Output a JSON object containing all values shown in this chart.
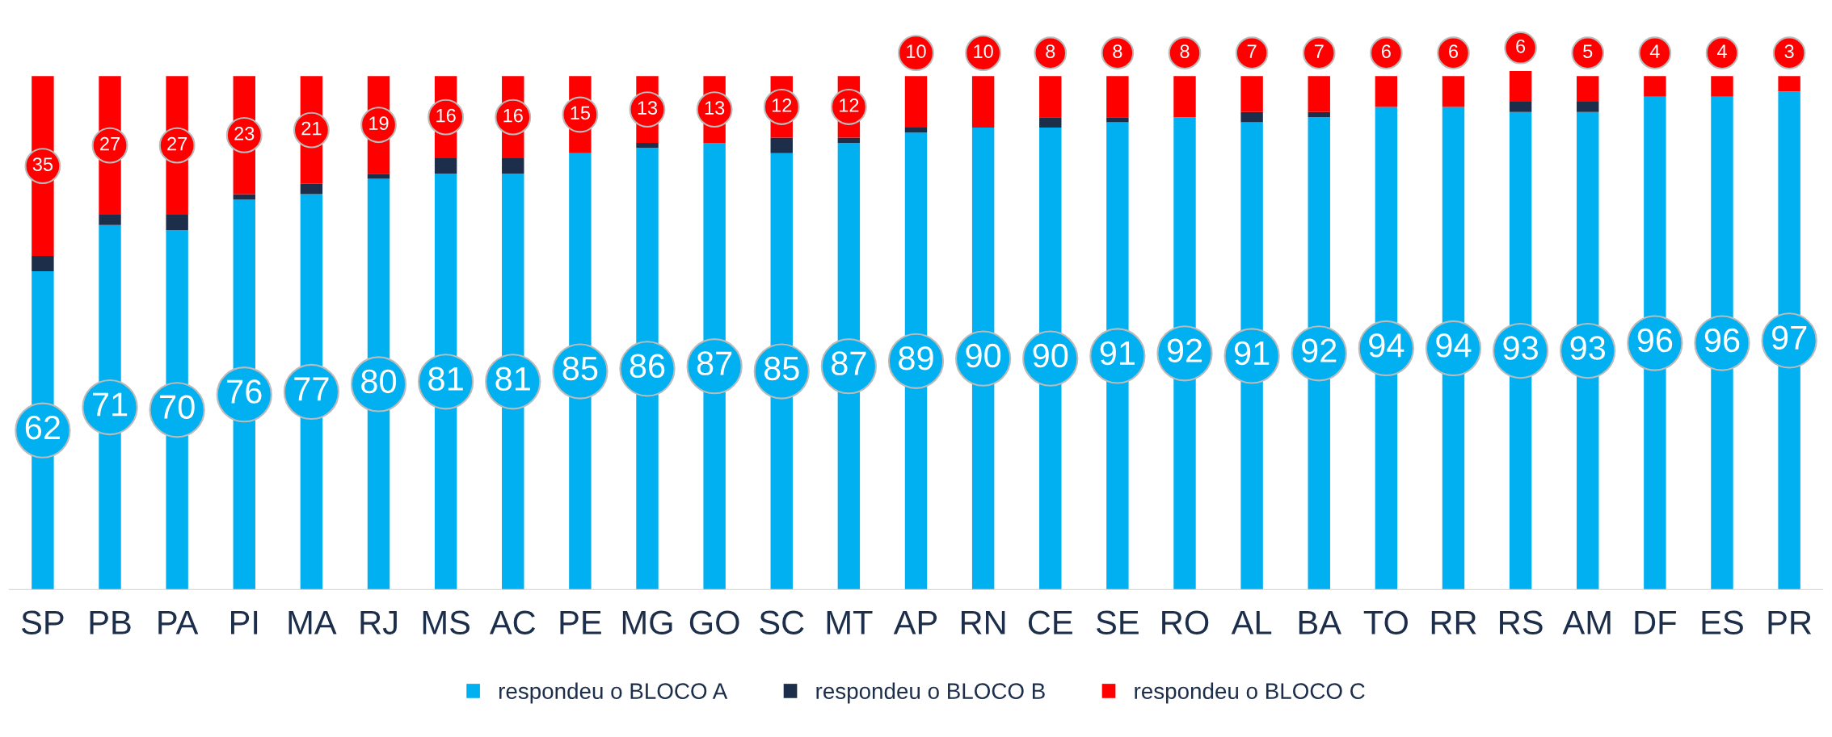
{
  "chart_data": {
    "type": "bar",
    "stacked": true,
    "legend": "bottom",
    "categories": [
      "SP",
      "PB",
      "PA",
      "PI",
      "MA",
      "RJ",
      "MS",
      "AC",
      "PE",
      "MG",
      "GO",
      "SC",
      "MT",
      "AP",
      "RN",
      "CE",
      "SE",
      "RO",
      "AL",
      "BA",
      "TO",
      "RR",
      "RS",
      "AM",
      "DF",
      "ES",
      "PR"
    ],
    "series": [
      {
        "name": "respondeu o BLOCO A",
        "color": "#00b0f0",
        "values": [
          62,
          71,
          70,
          76,
          77,
          80,
          81,
          81,
          85,
          86,
          87,
          85,
          87,
          89,
          90,
          90,
          91,
          92,
          91,
          92,
          94,
          94,
          93,
          93,
          96,
          96,
          97
        ],
        "value_labels": [
          "62",
          "71",
          "70",
          "76",
          "77",
          "80",
          "81",
          "81",
          "85",
          "86",
          "87",
          "85",
          "87",
          "89",
          "90",
          "90",
          "91",
          "92",
          "91",
          "92",
          "94",
          "94",
          "93",
          "93",
          "96",
          "96",
          "97"
        ]
      },
      {
        "name": "respondeu o BLOCO B",
        "color": "#1c2e4a",
        "values": [
          3,
          2,
          3,
          1,
          2,
          1,
          3,
          3,
          0,
          1,
          0,
          3,
          1,
          1,
          0,
          2,
          1,
          0,
          2,
          1,
          0,
          0,
          2,
          2,
          0,
          0,
          0
        ]
      },
      {
        "name": "respondeu o BLOCO C",
        "color": "#ff0000",
        "values": [
          35,
          27,
          27,
          23,
          21,
          19,
          16,
          16,
          15,
          13,
          13,
          12,
          12,
          10,
          10,
          8,
          8,
          8,
          7,
          7,
          6,
          6,
          6,
          5,
          4,
          4,
          3
        ],
        "value_labels": [
          "35",
          "27",
          "27",
          "23",
          "21",
          "19",
          "16",
          "16",
          "15",
          "13",
          "13",
          "12",
          "12",
          "10",
          "10",
          "8",
          "8",
          "8",
          "7",
          "7",
          "6",
          "6",
          "6",
          "5",
          "4",
          "4",
          "3"
        ]
      }
    ]
  }
}
